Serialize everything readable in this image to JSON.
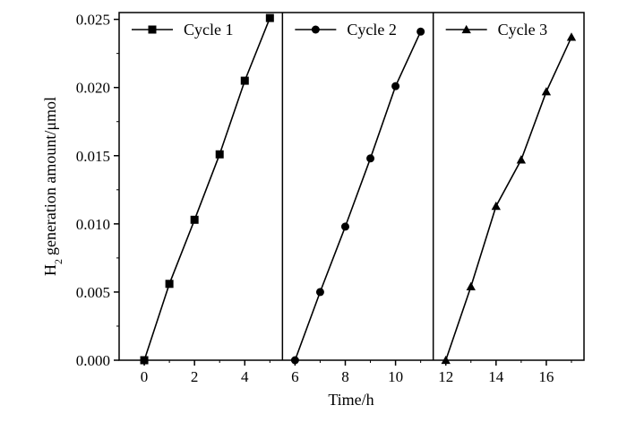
{
  "chart_data": {
    "type": "line",
    "xlabel": "Time/h",
    "ylabel": "generation amount/μmol",
    "ylabel_prefix": "H",
    "ylabel_subscript": "2",
    "xlim": [
      -1,
      17.5
    ],
    "ylim": [
      0.0,
      0.0255
    ],
    "x_ticks": [
      0,
      2,
      4,
      6,
      8,
      10,
      12,
      14,
      16
    ],
    "y_ticks": [
      0.0,
      0.005,
      0.01,
      0.015,
      0.02,
      0.025
    ],
    "y_tick_labels": [
      "0.000",
      "0.005",
      "0.010",
      "0.015",
      "0.020",
      "0.025"
    ],
    "dividers_x": [
      5.5,
      11.5
    ],
    "series": [
      {
        "name": "Cycle 1",
        "marker": "square",
        "x": [
          0,
          1,
          2,
          3,
          4,
          5
        ],
        "y": [
          0.0,
          0.0056,
          0.0103,
          0.0151,
          0.0205,
          0.0251
        ]
      },
      {
        "name": "Cycle 2",
        "marker": "circle",
        "x": [
          6,
          7,
          8,
          9,
          10,
          11
        ],
        "y": [
          0.0,
          0.005,
          0.0098,
          0.0148,
          0.0201,
          0.0241
        ]
      },
      {
        "name": "Cycle 3",
        "marker": "triangle",
        "x": [
          12,
          13,
          14,
          15,
          16,
          17
        ],
        "y": [
          0.0,
          0.0054,
          0.0113,
          0.0147,
          0.0197,
          0.0237
        ]
      }
    ],
    "legend_placement": "top of each panel",
    "grid": false,
    "color": "#000000"
  }
}
